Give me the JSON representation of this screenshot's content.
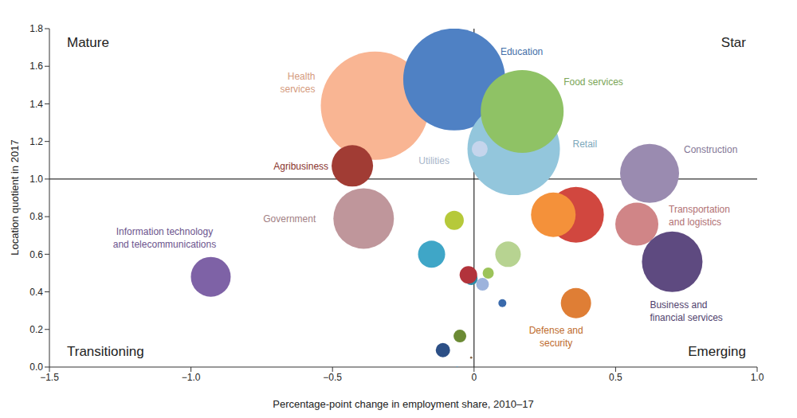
{
  "chart_data": {
    "type": "bubble",
    "x_label": "Percentage-point change in employment share, 2010–17",
    "y_label": "Location quotient in 2017",
    "quadrant_labels": {
      "top_left": "Mature",
      "top_right": "Star",
      "bottom_left": "Transitioning",
      "bottom_right": "Emerging"
    },
    "dividers": {
      "x": 0,
      "y": 1
    },
    "xlim": [
      -1.5,
      1
    ],
    "xticks": [
      {
        "value": -1.5,
        "label": "−1.5"
      },
      {
        "value": -1,
        "label": "−1.0"
      },
      {
        "value": -0.5,
        "label": "−0.5"
      },
      0,
      0.5,
      {
        "value": 1,
        "label": "1.0"
      }
    ],
    "ylim": [
      0,
      1.8
    ],
    "yticks": [
      {
        "value": 0,
        "label": "0.0"
      },
      0.2,
      0.4,
      0.6,
      0.8,
      {
        "value": 1,
        "label": "1.0"
      },
      1.2,
      1.4,
      1.6,
      1.8
    ],
    "grid": false,
    "labels": [
      "Health\nservices",
      "Education",
      "Retail",
      "Food services",
      "Utilities",
      "Agribusiness",
      "Construction",
      "Government",
      "Information technology\nand telecommunications",
      "Transportation\nand logistics",
      "Business and\nfinancial services",
      null,
      null,
      "Defense and\nsecurity",
      null,
      null,
      null,
      null,
      null,
      null,
      null,
      null,
      null,
      null,
      null,
      null
    ],
    "x": [
      -0.35,
      -0.07,
      0.14,
      0.17,
      0.02,
      -0.43,
      0.62,
      -0.39,
      -0.93,
      0.575,
      0.7,
      0.36,
      0.28,
      0.36,
      -0.07,
      -0.15,
      0.12,
      -0.01,
      -0.02,
      0.05,
      0.03,
      0.1,
      -0.05,
      -0.11,
      -0.01,
      -0.06
    ],
    "values": [
      1.39,
      1.53,
      1.16,
      1.36,
      1.16,
      1.07,
      1.03,
      0.79,
      0.48,
      0.76,
      0.56,
      0.81,
      0.81,
      0.34,
      0.78,
      0.6,
      0.6,
      0.47,
      0.49,
      0.5,
      0.44,
      0.34,
      0.165,
      0.09,
      0.05,
      0
    ],
    "sizes": [
      4624,
      4096,
      3364,
      2704,
      100,
      676,
      1369,
      1444,
      625,
      729,
      1444,
      1225,
      784,
      361,
      144,
      289,
      256,
      64,
      121,
      49,
      64,
      25,
      64,
      81,
      2,
      1
    ],
    "colors": [
      "#f9b593",
      "#4f81c4",
      "#93c6dc",
      "#8fc265",
      "#c5d5ec",
      "#a13c34",
      "#9a8bb0",
      "#bf969b",
      "#7e62a6",
      "#d08587",
      "#5e4a80",
      "#d1473f",
      "#f4913a",
      "#df7e35",
      "#b6c93a",
      "#3fa6c7",
      "#b7d391",
      "#2c8aa6",
      "#b2333b",
      "#9cc35a",
      "#9db3dc",
      "#3a6aac",
      "#6b8a34",
      "#2c4f86",
      "#8a6a4a",
      "#5aa0c8"
    ]
  }
}
